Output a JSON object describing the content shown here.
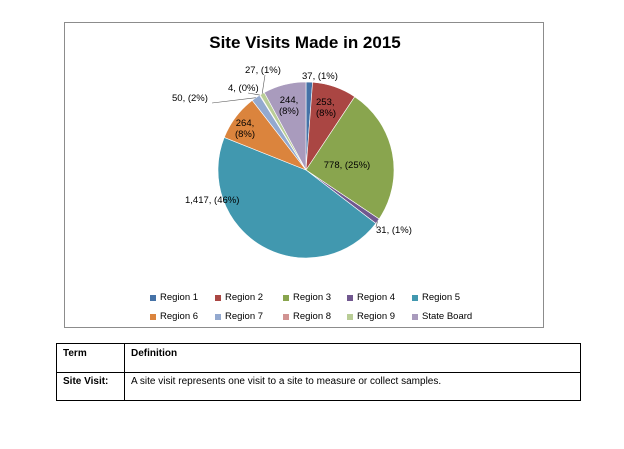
{
  "chart_data": {
    "type": "pie",
    "title": "Site Visits Made in 2015",
    "slices": [
      {
        "name": "Region 1",
        "value": 37,
        "label": "37, (1%)",
        "color": "#4572A7"
      },
      {
        "name": "Region 2",
        "value": 253,
        "label": "253, (8%)",
        "color": "#AA4643"
      },
      {
        "name": "Region 3",
        "value": 778,
        "label": "778, (25%)",
        "color": "#89A54E"
      },
      {
        "name": "Region 4",
        "value": 31,
        "label": "31, (1%)",
        "color": "#71588F"
      },
      {
        "name": "Region 5",
        "value": 1417,
        "label": "1,417, (46%)",
        "color": "#4198AF"
      },
      {
        "name": "Region 6",
        "value": 264,
        "label": "264, (8%)",
        "color": "#DB843D"
      },
      {
        "name": "Region 7",
        "value": 50,
        "label": "50, (2%)",
        "color": "#93A9CF"
      },
      {
        "name": "Region 8",
        "value": 4,
        "label": "4, (0%)",
        "color": "#D19392"
      },
      {
        "name": "Region 9",
        "value": 27,
        "label": "27, (1%)",
        "color": "#B9CD96"
      },
      {
        "name": "State Board",
        "value": 244,
        "label": "244, (8%)",
        "color": "#A99BBD"
      }
    ],
    "legend_position": "bottom"
  },
  "definition_table": {
    "headers": {
      "term": "Term",
      "definition": "Definition"
    },
    "rows": [
      {
        "term": "Site Visit:",
        "definition": "A site visit represents one visit to a site to measure or collect samples."
      }
    ]
  }
}
